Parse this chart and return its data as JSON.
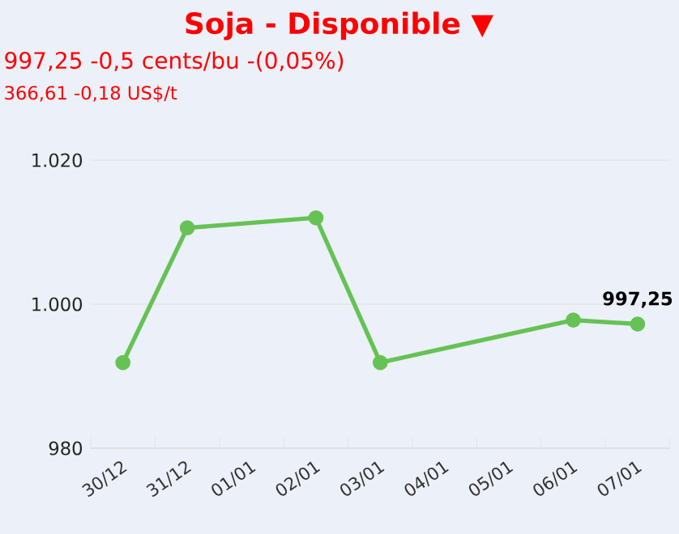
{
  "chart_data": {
    "type": "line",
    "title": "Soja - Disponible ▼",
    "subtitle": "997,25 -0,5 cents/bu -(0,05%)",
    "annotations": [
      "366,61 -0,18 US$/t"
    ],
    "categories": [
      "30/12",
      "31/12",
      "01/01",
      "02/01",
      "03/01",
      "04/01",
      "05/01",
      "06/01",
      "07/01"
    ],
    "series": [
      {
        "color": "#66c254",
        "values": [
          991.9,
          1010.6,
          null,
          1012.0,
          991.9,
          null,
          null,
          997.8,
          997.25
        ],
        "value_labels": [
          null,
          null,
          null,
          null,
          null,
          null,
          null,
          null,
          "997,25"
        ]
      }
    ],
    "ylim": [
      980,
      1020
    ],
    "yticks": [
      {
        "value": 980,
        "label": "980"
      },
      {
        "value": 1000,
        "label": "1.000"
      },
      {
        "value": 1020,
        "label": "1.020"
      }
    ],
    "grid": "y",
    "marker": "circle",
    "line_style": "solid"
  }
}
